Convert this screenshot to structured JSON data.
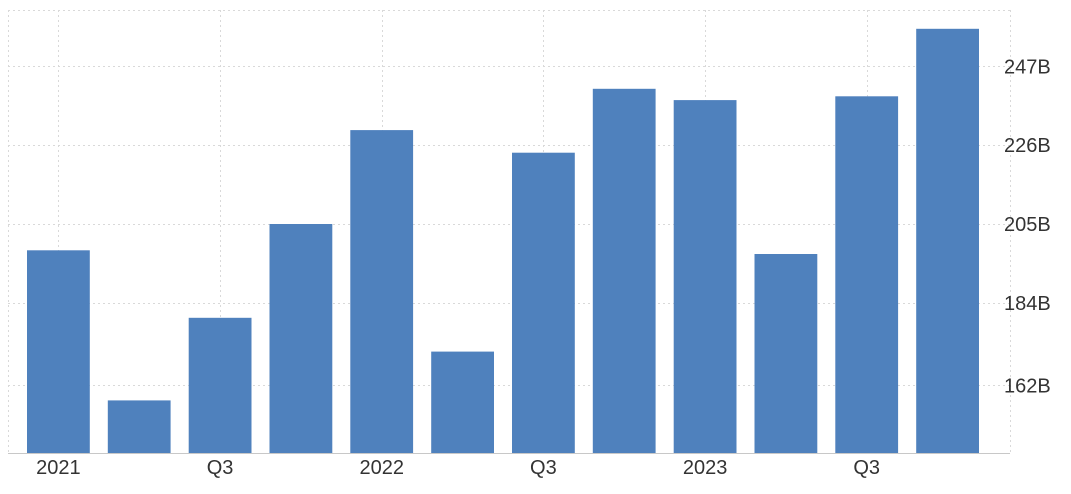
{
  "chart_data": {
    "type": "bar",
    "categories": [
      "2021 Q1",
      "2021 Q2",
      "2021 Q3",
      "2021 Q4",
      "2022 Q1",
      "2022 Q2",
      "2022 Q3",
      "2022 Q4",
      "2023 Q1",
      "2023 Q2",
      "2023 Q3",
      "2023 Q4"
    ],
    "x_tick_labels": [
      "2021",
      "",
      "Q3",
      "",
      "2022",
      "",
      "Q3",
      "",
      "2023",
      "",
      "Q3",
      ""
    ],
    "values": [
      198,
      158,
      180,
      205,
      230,
      171,
      224,
      241,
      238,
      197,
      239,
      257
    ],
    "y_ticks": [
      162,
      184,
      205,
      226,
      247
    ],
    "y_tick_labels": [
      "162B",
      "184B",
      "205B",
      "226B",
      "247B"
    ],
    "ylim": [
      144,
      262
    ],
    "bar_color": "#4f81bd",
    "grid": true,
    "y_axis_side": "right",
    "title": "",
    "xlabel": "",
    "ylabel": ""
  }
}
